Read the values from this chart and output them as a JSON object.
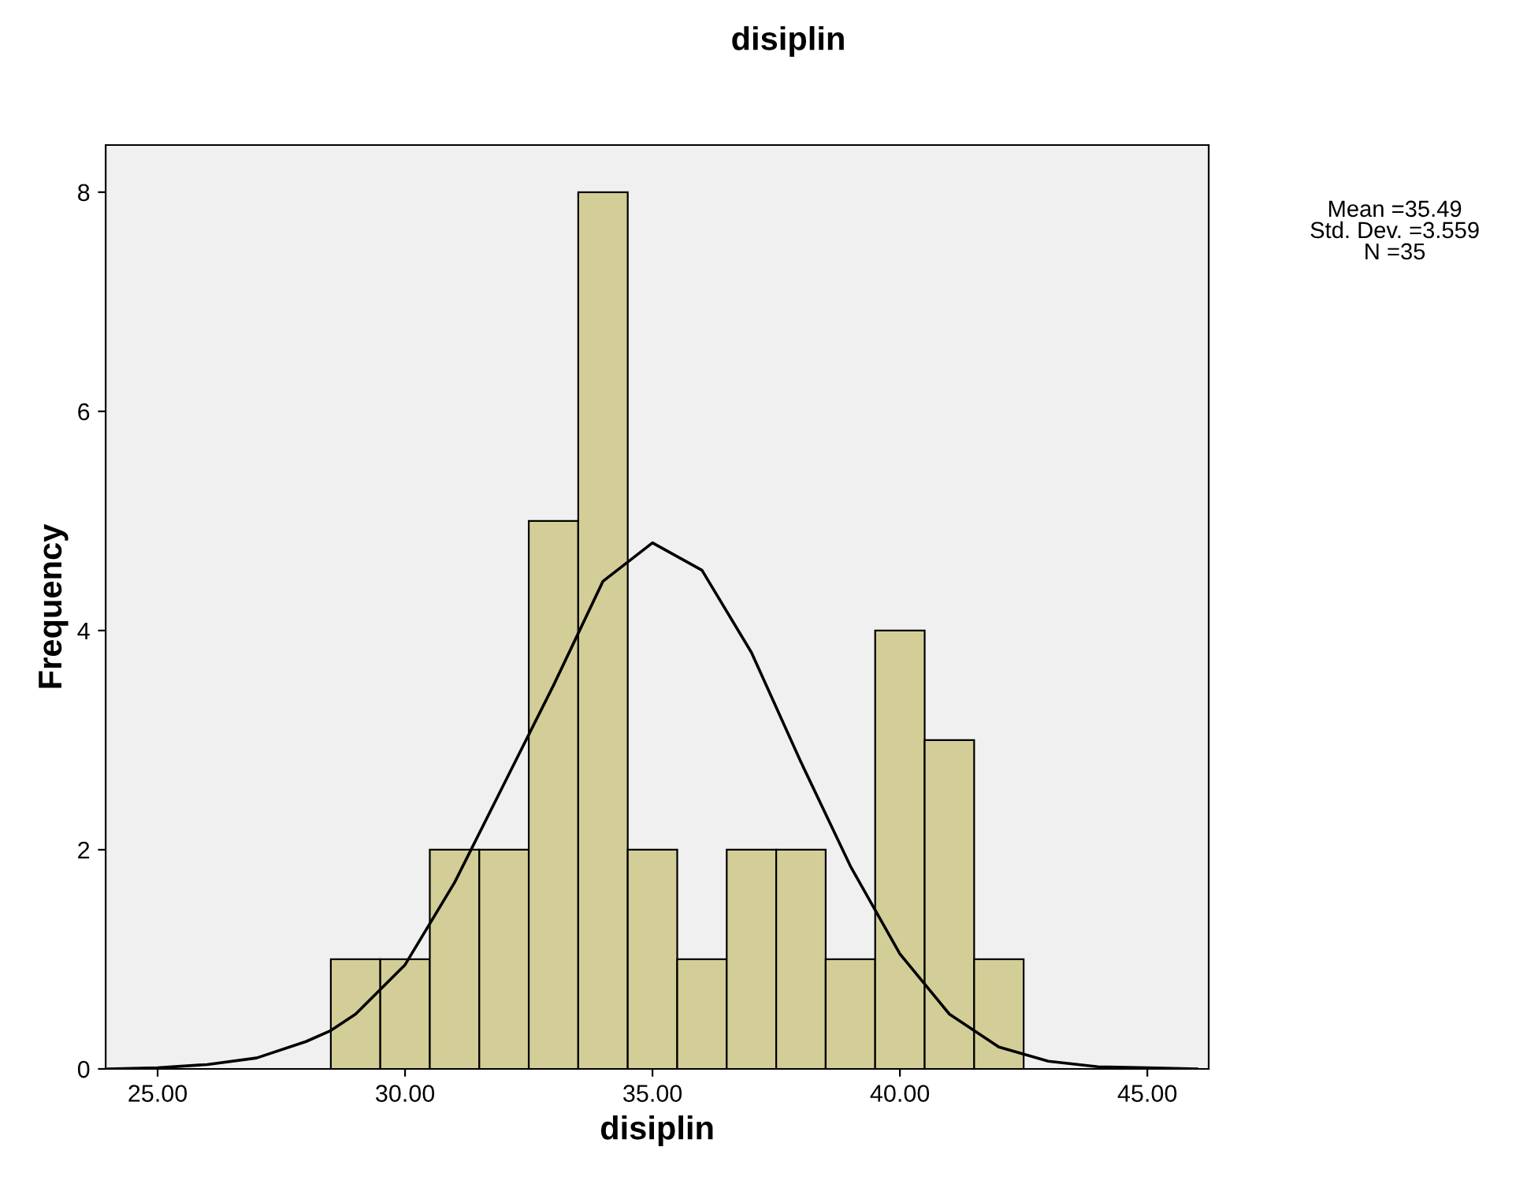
{
  "chart_data": {
    "type": "histogram",
    "title": "disiplin",
    "xlabel": "disiplin",
    "ylabel": "Frequency",
    "bins": [
      28.5,
      29.5,
      30.5,
      31.5,
      32.5,
      33.5,
      34.5,
      35.5,
      36.5,
      37.5,
      38.5,
      39.5,
      40.5,
      41.5,
      42.5
    ],
    "series": [
      {
        "color": "#d3ce97",
        "values": [
          1,
          1,
          2,
          2,
          5,
          8,
          2,
          1,
          2,
          2,
          1,
          4,
          3,
          1
        ]
      },
      {
        "type": "line",
        "color": "#000000",
        "x": [
          24,
          25,
          26,
          27,
          28,
          28.5,
          29,
          30,
          31,
          32,
          33,
          34,
          35,
          36,
          37,
          38,
          39,
          40,
          41,
          42,
          43,
          44,
          45,
          46
        ],
        "values": [
          0,
          0.01,
          0.04,
          0.1,
          0.25,
          0.35,
          0.5,
          0.95,
          1.7,
          2.6,
          3.5,
          4.45,
          4.8,
          4.55,
          3.8,
          2.8,
          1.85,
          1.05,
          0.5,
          0.2,
          0.07,
          0.02,
          0.01,
          0
        ]
      }
    ],
    "xlim": [
      23.95,
      46.24
    ],
    "ylim": [
      0,
      8.43
    ],
    "xticks": [
      {
        "value": 25,
        "label": "25.00"
      },
      {
        "value": 30,
        "label": "30.00"
      },
      {
        "value": 35,
        "label": "35.00"
      },
      {
        "value": 40,
        "label": "40.00"
      },
      {
        "value": 45,
        "label": "45.00"
      }
    ],
    "yticks": [
      0,
      2,
      4,
      6,
      8
    ],
    "grid": false,
    "legend": false,
    "annotations": [
      "Mean =35.49",
      "Std. Dev. =3.559",
      "N =35"
    ]
  }
}
